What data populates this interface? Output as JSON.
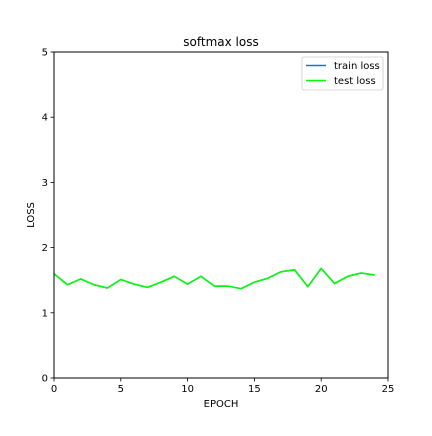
{
  "chart_data": {
    "type": "line",
    "title": "softmax loss",
    "xlabel": "EPOCH",
    "ylabel": "LOSS",
    "xlim": [
      0,
      25
    ],
    "ylim": [
      0,
      5
    ],
    "xticks": [
      0,
      5,
      10,
      15,
      20,
      25
    ],
    "yticks": [
      0,
      1,
      2,
      3,
      4,
      5
    ],
    "xtick_labels": [
      "0",
      "5",
      "10",
      "15",
      "20",
      "25"
    ],
    "ytick_labels": [
      "0",
      "1",
      "2",
      "3",
      "4",
      "5"
    ],
    "grid": false,
    "legend_position": "top-right",
    "x": [
      0,
      1,
      2,
      3,
      4,
      5,
      6,
      7,
      8,
      9,
      10,
      11,
      12,
      13,
      14,
      15,
      16,
      17,
      18,
      19,
      20,
      21,
      22,
      23,
      24
    ],
    "series": [
      {
        "name": "train loss",
        "color": "#1f77b4",
        "values": [
          1.6,
          1.43,
          1.52,
          1.43,
          1.38,
          1.51,
          1.44,
          1.39,
          1.47,
          1.56,
          1.44,
          1.56,
          1.41,
          1.41,
          1.37,
          1.47,
          1.53,
          1.63,
          1.66,
          1.4,
          1.68,
          1.45,
          1.56,
          1.61,
          1.58
        ]
      },
      {
        "name": "test loss",
        "color": "#00ff00",
        "values": [
          1.6,
          1.43,
          1.52,
          1.43,
          1.38,
          1.51,
          1.44,
          1.39,
          1.47,
          1.56,
          1.44,
          1.56,
          1.41,
          1.41,
          1.37,
          1.47,
          1.53,
          1.63,
          1.66,
          1.4,
          1.68,
          1.45,
          1.56,
          1.61,
          1.58
        ]
      }
    ]
  }
}
